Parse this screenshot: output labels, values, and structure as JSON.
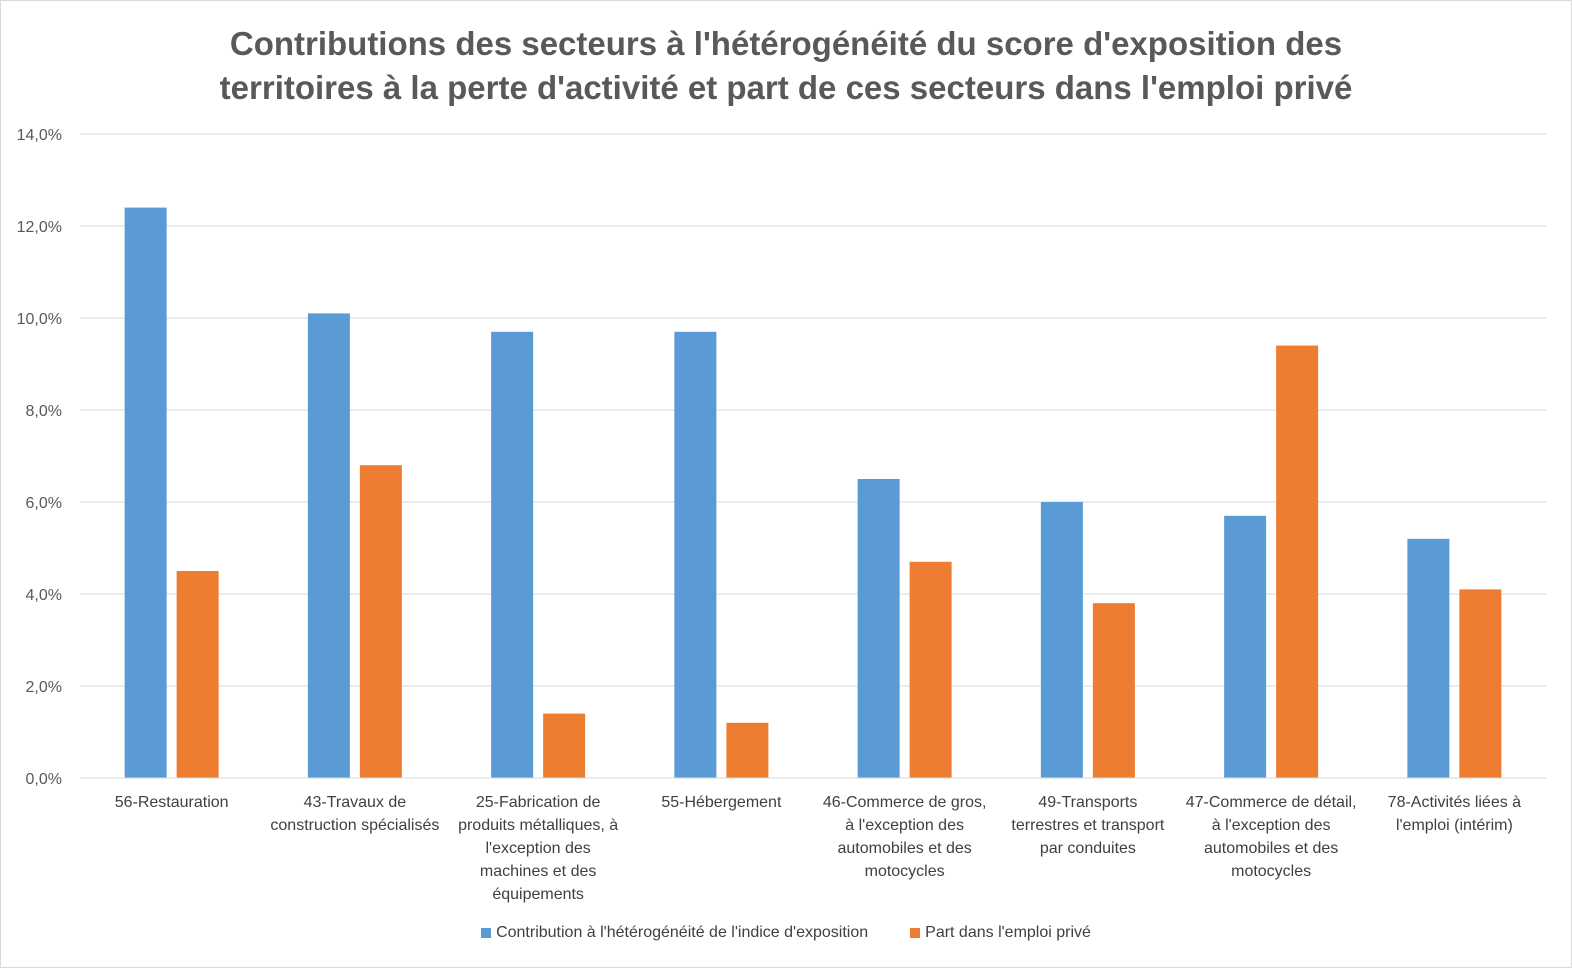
{
  "chart_data": {
    "type": "bar",
    "title_lines": [
      "Contributions des secteurs à l'hétérogénéité du score d'exposition des",
      "territoires à la perte d'activité et part de ces secteurs dans l'emploi privé"
    ],
    "categories": [
      [
        "56-Restauration"
      ],
      [
        "43-Travaux de",
        "construction spécialisés"
      ],
      [
        "25-Fabrication de",
        "produits métalliques, à",
        "l'exception des",
        "machines et des",
        "équipements"
      ],
      [
        "55-Hébergement"
      ],
      [
        "46-Commerce de gros,",
        "à l'exception des",
        "automobiles et des",
        "motocycles"
      ],
      [
        "49-Transports",
        "terrestres et transport",
        "par conduites"
      ],
      [
        "47-Commerce de détail,",
        "à l'exception des",
        "automobiles et des",
        "motocycles"
      ],
      [
        "78-Activités liées à",
        "l'emploi (intérim)"
      ]
    ],
    "series": [
      {
        "name": "Contribution à l'hétérogénéité de l'indice d'exposition",
        "color": "#5b9bd5",
        "values": [
          12.4,
          10.1,
          9.7,
          9.7,
          6.5,
          6.0,
          5.7,
          5.2
        ]
      },
      {
        "name": "Part dans l'emploi privé",
        "color": "#ed7d31",
        "values": [
          4.5,
          6.8,
          1.4,
          1.2,
          4.7,
          3.8,
          9.4,
          4.1
        ]
      }
    ],
    "yticks": [
      "0,0%",
      "2,0%",
      "4,0%",
      "6,0%",
      "8,0%",
      "10,0%",
      "12,0%",
      "14,0%"
    ],
    "ylim": [
      0,
      14
    ],
    "grid": true,
    "legend_position": "bottom"
  }
}
